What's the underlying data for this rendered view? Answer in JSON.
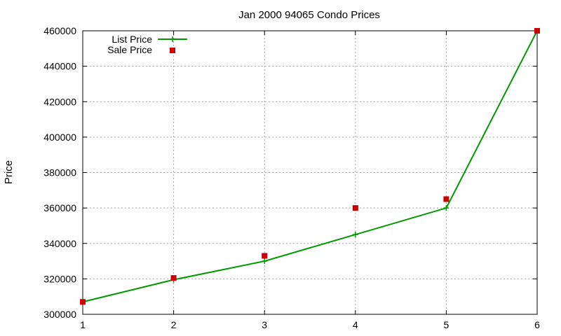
{
  "chart_data": {
    "type": "line",
    "title": "Jan 2000 94065 Condo Prices",
    "xlabel": "",
    "ylabel": "Price",
    "xlim": [
      1,
      6
    ],
    "ylim": [
      300000,
      460000
    ],
    "x_ticks": [
      1,
      2,
      3,
      4,
      5,
      6
    ],
    "y_ticks": [
      300000,
      320000,
      340000,
      360000,
      380000,
      400000,
      420000,
      440000,
      460000
    ],
    "grid": true,
    "legend_position": "top-left",
    "series": [
      {
        "name": "List Price",
        "style": "line+cross",
        "color": "#009900",
        "x": [
          1,
          2,
          3,
          4,
          5,
          6
        ],
        "y": [
          307000,
          319500,
          330000,
          345000,
          360000,
          460000
        ]
      },
      {
        "name": "Sale Price",
        "style": "square",
        "color": "#cc0000",
        "x": [
          1,
          2,
          3,
          4,
          5,
          6
        ],
        "y": [
          307000,
          320500,
          333000,
          360000,
          365000,
          460000
        ]
      }
    ]
  }
}
